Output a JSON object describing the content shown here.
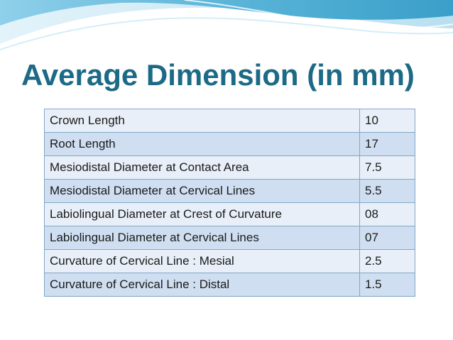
{
  "slide": {
    "title": "Average Dimension (in mm)",
    "colors": {
      "title": "#1c6a86",
      "row_light": "#e9eff8",
      "row_dark": "#cfdef0",
      "border": "#7fa8c6",
      "wave_dark": "#5bb5d8",
      "wave_light": "#c9e7f3"
    }
  },
  "table": {
    "rows": [
      {
        "label": "Crown Length",
        "value": "10"
      },
      {
        "label": "Root Length",
        "value": "17"
      },
      {
        "label": "Mesiodistal Diameter at Contact Area",
        "value": "7.5"
      },
      {
        "label": "Mesiodistal Diameter at Cervical Lines",
        "value": "5.5"
      },
      {
        "label": "Labiolingual Diameter at Crest of Curvature",
        "value": "08"
      },
      {
        "label": "Labiolingual Diameter at Cervical Lines",
        "value": "07"
      },
      {
        "label": "Curvature of Cervical Line : Mesial",
        "value": "2.5"
      },
      {
        "label": "Curvature of Cervical Line : Distal",
        "value": "1.5"
      }
    ]
  }
}
